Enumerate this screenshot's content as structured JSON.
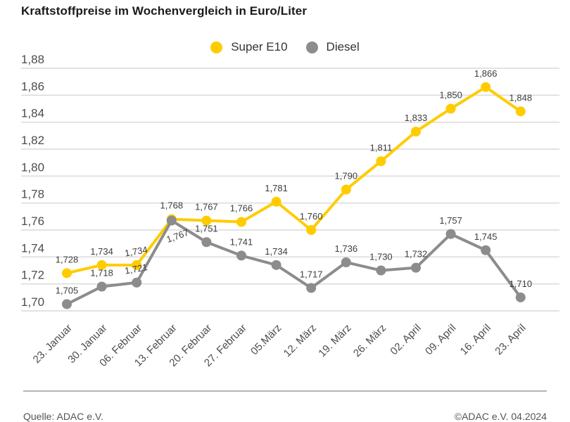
{
  "title": "Kraftstoffpreise im Wochenvergleich in Euro/Liter",
  "footer": {
    "source": "Quelle: ADAC e.V.",
    "copyright": "©ADAC e.V. 04.2024"
  },
  "colors": {
    "super_e10": "#FFCC00",
    "diesel": "#8C8C8C",
    "gridline": "#d8d8d8",
    "axis_text": "#4d4d4d",
    "point_label_text": "#3d3d3d"
  },
  "chart_data": {
    "type": "line",
    "title": "Kraftstoffpreise im Wochenvergleich in Euro/Liter",
    "xlabel": "",
    "ylabel": "Euro/Liter",
    "categories": [
      "23. Januar",
      "30. Januar",
      "06. Februar",
      "13. Februar",
      "20. Februar",
      "27. Februar",
      "05.März",
      "12. März",
      "19. März",
      "26. März",
      "02. April",
      "09. April",
      "16. April",
      "23. April"
    ],
    "series": [
      {
        "name": "Super E10",
        "color": "#FFCC00",
        "values": [
          1.728,
          1.734,
          1.734,
          1.768,
          1.767,
          1.766,
          1.781,
          1.76,
          1.79,
          1.811,
          1.833,
          1.85,
          1.866,
          1.848
        ],
        "labels": [
          "1,728",
          "1,734",
          "1,734",
          "1,768",
          "1,767",
          "1,766",
          "1,781",
          "1,760",
          "1,790",
          "1,811",
          "1,833",
          "1,850",
          "1,866",
          "1,848"
        ]
      },
      {
        "name": "Diesel",
        "color": "#8C8C8C",
        "values": [
          1.705,
          1.718,
          1.721,
          1.767,
          1.751,
          1.741,
          1.734,
          1.717,
          1.736,
          1.73,
          1.732,
          1.757,
          1.745,
          1.71
        ],
        "labels": [
          "1,705",
          "1,718",
          "1,721",
          "1,767",
          "1,751",
          "1,741",
          "1,734",
          "1,717",
          "1,736",
          "1,730",
          "1,732",
          "1,757",
          "1,745",
          "1,710"
        ]
      }
    ],
    "ylim": [
      1.7,
      1.88
    ],
    "ytick_step": 0.02,
    "ytick_labels": [
      "1,70",
      "1,72",
      "1,74",
      "1,76",
      "1,78",
      "1,80",
      "1,82",
      "1,84",
      "1,86",
      "1,88"
    ],
    "grid": "horizontal",
    "legend_position": "top-center",
    "legend": [
      "Super E10",
      "Diesel"
    ]
  }
}
